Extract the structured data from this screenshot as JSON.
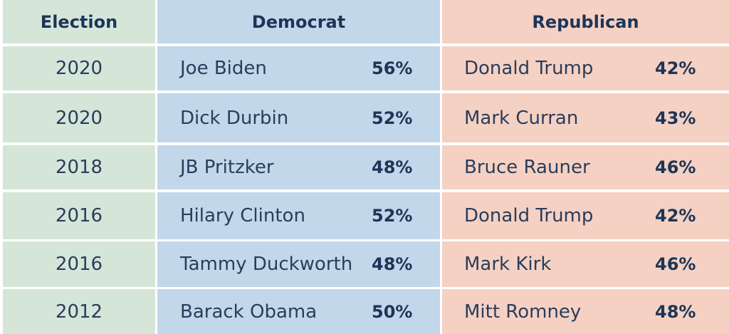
{
  "chart_data": {
    "type": "table",
    "columns": [
      "Election",
      "Democrat",
      "Republican"
    ],
    "rows": [
      {
        "election": "2020",
        "democrat": "Joe Biden",
        "dem_pct": "56%",
        "republican": "Donald Trump",
        "rep_pct": "42%"
      },
      {
        "election": "2020",
        "democrat": "Dick Durbin",
        "dem_pct": "52%",
        "republican": "Mark Curran",
        "rep_pct": "43%"
      },
      {
        "election": "2018",
        "democrat": "JB Pritzker",
        "dem_pct": "48%",
        "republican": "Bruce Rauner",
        "rep_pct": "46%"
      },
      {
        "election": "2016",
        "democrat": "Hilary Clinton",
        "dem_pct": "52%",
        "republican": "Donald Trump",
        "rep_pct": "42%"
      },
      {
        "election": "2016",
        "democrat": "Tammy Duckworth",
        "dem_pct": "48%",
        "republican": "Mark Kirk",
        "rep_pct": "46%"
      },
      {
        "election": "2012",
        "democrat": "Barack Obama",
        "dem_pct": "50%",
        "republican": "Mitt Romney",
        "rep_pct": "48%"
      }
    ]
  },
  "colors": {
    "election_column": "#d5e6d9",
    "democrat_column": "#c3d7ea",
    "republican_column": "#f5d1c3",
    "text": "#1d3557"
  }
}
